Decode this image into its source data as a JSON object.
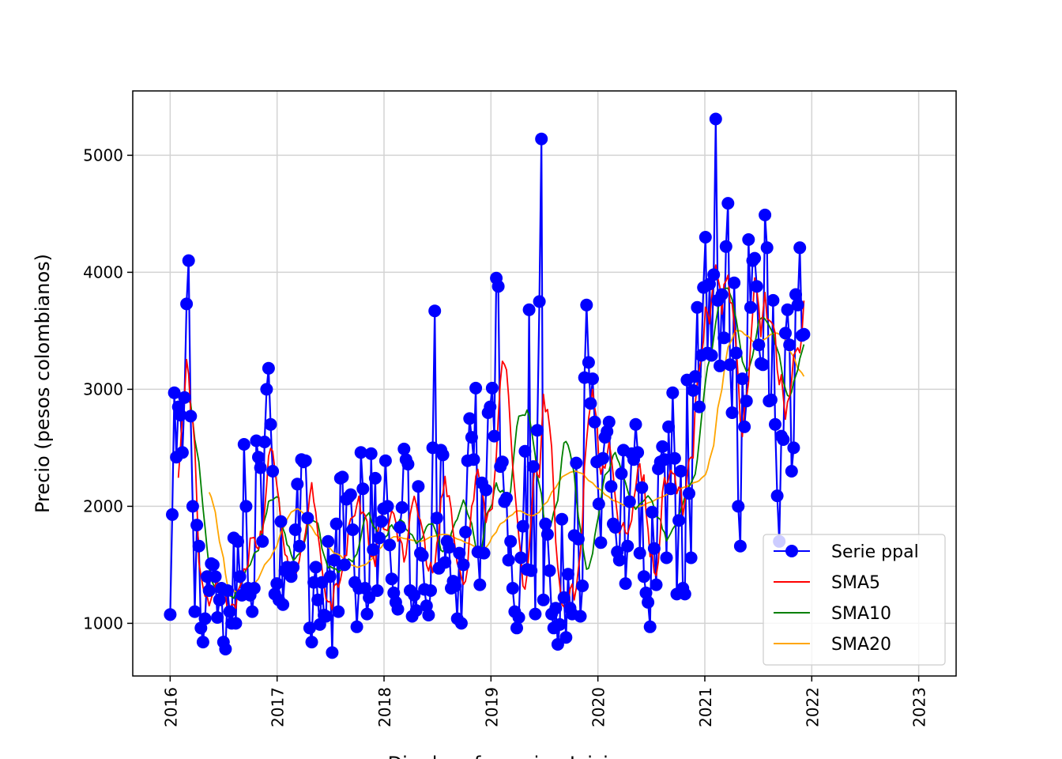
{
  "chart_data": {
    "type": "line",
    "title": "",
    "xlabel": "Dia de referencia - Inicio semana",
    "ylabel": "Precio (pesos colombianos)",
    "xlim": [
      2015.65,
      2023.35
    ],
    "ylim": [
      550,
      5550
    ],
    "x_ticks": [
      2016,
      2017,
      2018,
      2019,
      2020,
      2021,
      2022,
      2023
    ],
    "x_tick_labels": [
      "2016",
      "2017",
      "2018",
      "2019",
      "2020",
      "2021",
      "2022",
      "2023"
    ],
    "y_ticks": [
      1000,
      2000,
      3000,
      4000,
      5000
    ],
    "y_tick_labels": [
      "1000",
      "2000",
      "3000",
      "4000",
      "5000"
    ],
    "grid": true,
    "legend_position": "lower-right",
    "colors": {
      "serie": "#0000ff",
      "sma5": "#ff0000",
      "sma10": "#008000",
      "sma20": "#ffa500",
      "grid": "#d3d3d3"
    },
    "legend": [
      "Serie ppal",
      "SMA5",
      "SMA10",
      "SMA20"
    ],
    "series_main": {
      "name": "Serie ppal",
      "x_start": 2016.0,
      "x_step": 0.01918,
      "values": [
        1075,
        1930,
        2970,
        2420,
        2850,
        2780,
        2460,
        2930,
        3730,
        4100,
        2770,
        2000,
        1100,
        1840,
        1660,
        960,
        840,
        1040,
        1400,
        1280,
        1510,
        1500,
        1400,
        1050,
        1200,
        1300,
        840,
        780,
        1280,
        1100,
        1000,
        1730,
        1000,
        1700,
        1400,
        1240,
        2530,
        2000,
        1300,
        1240,
        1100,
        1300,
        2560,
        2420,
        2330,
        1700,
        2550,
        3000,
        3180,
        2700,
        2300,
        1250,
        1340,
        1200,
        1870,
        1160,
        1450,
        1480,
        1440,
        1400,
        1480,
        1800,
        2190,
        1660,
        2400,
        2380,
        2390,
        1900,
        960,
        840,
        1350,
        1480,
        1200,
        990,
        1350,
        1070,
        1060,
        1700,
        1400,
        750,
        1540,
        1850,
        1100,
        2240,
        2250,
        1500,
        2060,
        2080,
        2100,
        1800,
        1350,
        970,
        1300,
        2460,
        2150,
        1300,
        1080,
        1220,
        2450,
        1630,
        2240,
        1280,
        1730,
        1870,
        1980,
        2390,
        2000,
        1670,
        1380,
        1260,
        1180,
        1120,
        1820,
        1990,
        2490,
        2400,
        2360,
        1280,
        1060,
        1240,
        1110,
        2170,
        1600,
        1580,
        1290,
        1150,
        1070,
        1280,
        2500,
        3670,
        1900,
        1470,
        2480,
        2440,
        1520,
        1700,
        1650,
        1300,
        1360,
        1320,
        1040,
        1600,
        1000,
        1500,
        1780,
        2390,
        2750,
        2590,
        2400,
        3010,
        1610,
        1330,
        2200,
        1600,
        2140,
        2800,
        2850,
        3010,
        2600,
        3950,
        3880,
        2340,
        2380,
        2040,
        2070,
        1540,
        1700,
        1300,
        1100,
        960,
        1050,
        1560,
        1830,
        2470,
        1460,
        3680,
        1450,
        2340,
        1080,
        2650,
        3750,
        5140,
        1200,
        1850,
        1760,
        1450,
        1080,
        960,
        1130,
        820,
        990,
        1890,
        1220,
        880,
        1420,
        1130,
        1080,
        1750,
        2370,
        1720,
        1060,
        1320,
        3100,
        3720,
        3230,
        2880,
        3090,
        2720,
        2380,
        2020,
        1690,
        2410,
        2590,
        2640,
        2720,
        2170,
        1850,
        1820,
        1610,
        1540,
        2280,
        2480,
        1340,
        1660,
        2040,
        2450,
        2400,
        2700,
        2460,
        1600,
        2160,
        1400,
        1260,
        1180,
        970,
        1950,
        1640,
        1330,
        2320,
        2380,
        2510,
        2400,
        1560,
        2680,
        2150,
        2970,
        2410,
        1250,
        1880,
        2300,
        1300,
        1250,
        3080,
        2110,
        1560,
        2990,
        3110,
        3700,
        2850,
        3290,
        3870,
        4300,
        3310,
        3900,
        3290,
        3980,
        5310,
        3760,
        3200,
        3810,
        3440,
        4220,
        4590,
        3210,
        2800,
        3910,
        3310,
        2000,
        1660,
        3090,
        2680,
        2900,
        4280,
        3700,
        4100,
        4120,
        3880,
        3380,
        3220,
        3210,
        4490,
        4210,
        2900,
        2910,
        3760,
        2700,
        2090,
        1700,
        2600,
        2570,
        3480,
        3680,
        3380,
        2300,
        2500,
        3810,
        3720,
        4210,
        3460,
        3470
      ]
    },
    "sma5": [
      2244,
      2491,
      2796,
      2946,
      3254,
      3128,
      2812,
      2734,
      2516,
      2044,
      1520,
      1409,
      1311,
      1232,
      1234,
      1150,
      1210,
      1326,
      1364,
      1264,
      1246,
      1296,
      1234,
      1102,
      1066,
      1162,
      1160,
      1128,
      1278,
      1312,
      1358,
      1466,
      1458,
      1498,
      1728,
      1730,
      1734,
      1652,
      1634,
      1788,
      1770,
      1958,
      2172,
      2430,
      2496,
      2470,
      2326,
      2180,
      2060,
      1864,
      1588,
      1570,
      1432,
      1362,
      1386,
      1400,
      1462,
      1540,
      1660,
      1678,
      1778,
      1906,
      2082,
      2202,
      2040,
      1950,
      1770,
      1640,
      1470,
      1330,
      1208,
      1184,
      1185,
      1114,
      1320,
      1340,
      1308,
      1370,
      1462,
      1578,
      1580,
      1832,
      1894,
      1920,
      2010,
      2086,
      1936,
      1952,
      1924,
      1872,
      1630,
      1568,
      1578,
      1486,
      1744,
      1868,
      1922,
      1806,
      1800,
      1792,
      1880,
      1962,
      1938,
      1864,
      1702,
      1724,
      1682,
      1524,
      1588,
      1746,
      1928,
      2014,
      2086,
      2020,
      1916,
      1882,
      1718,
      1498,
      1448,
      1520,
      1432,
      1480,
      1684,
      1754,
      2066,
      2110,
      2256,
      2084,
      2090,
      1976,
      1780,
      1644,
      1508,
      1480,
      1394,
      1332,
      1360,
      1468,
      1774,
      2000,
      2054,
      2254,
      2316,
      2204,
      2144,
      2030,
      1862,
      1950,
      1980,
      2216,
      2428,
      2762,
      3066,
      3240,
      3212,
      3166,
      2946,
      2636,
      2346,
      2146,
      1944,
      1744,
      1572,
      1320,
      1292,
      1416,
      1628,
      1886,
      2188,
      2390,
      2270,
      2246,
      2594,
      2958,
      2808,
      2828,
      2682,
      2508,
      2138,
      1696,
      1482,
      1162,
      1140,
      1164,
      1142,
      1294,
      1336,
      1200,
      1300,
      1464,
      1604,
      1860,
      2340,
      2560,
      2750,
      2866,
      3000,
      2844,
      2744,
      2400,
      2274,
      2346,
      2326,
      2430,
      2550,
      2434,
      2272,
      2080,
      1932,
      1766,
      1820,
      1860,
      1774,
      1764,
      1882,
      2056,
      2156,
      2316,
      2364,
      2202,
      2268,
      1954,
      1804,
      1570,
      1612,
      1434,
      1408,
      1524,
      1770,
      2120,
      2246,
      2168,
      2234,
      2308,
      2280,
      2276,
      2108,
      2164,
      2148,
      1922,
      2034,
      2252,
      2398,
      2420,
      2412,
      2868,
      3054,
      3282,
      3412,
      3702,
      3652,
      3560,
      3778,
      3952,
      4062,
      3952,
      3874,
      3642,
      3896,
      3926,
      3976,
      3744,
      3734,
      3562,
      3364,
      3094,
      2730,
      2596,
      2838,
      2924,
      3058,
      3384,
      3646,
      3952,
      3850,
      3706,
      3450,
      3658,
      3828,
      3604,
      3576,
      3550,
      3480,
      3168,
      3040,
      3124,
      2924,
      2744,
      2890,
      2938,
      3070,
      3290,
      3324,
      3354,
      3312,
      3462,
      3758
    ],
    "sma10": [
      2902,
      2879,
      2735,
      2573,
      2380,
      2186,
      1988,
      1820,
      1638,
      1476,
      1370,
      1302,
      1318,
      1298,
      1254,
      1244,
      1252,
      1282,
      1240,
      1214,
      1262,
      1270,
      1318,
      1352,
      1406,
      1462,
      1500,
      1548,
      1600,
      1612,
      1622,
      1696,
      1822,
      1946,
      2042,
      2052,
      2054,
      2070,
      2082,
      2072,
      1854,
      1764,
      1672,
      1654,
      1588,
      1540,
      1554,
      1580,
      1614,
      1664,
      1732,
      1840,
      1910,
      1882,
      1874,
      1856,
      1768,
      1640,
      1584,
      1532,
      1472,
      1488,
      1474,
      1462,
      1434,
      1452,
      1478,
      1504,
      1538,
      1550,
      1526,
      1568,
      1592,
      1658,
      1736,
      1834,
      1904,
      1946,
      1880,
      1832,
      1814,
      1784,
      1762,
      1736,
      1722,
      1754,
      1822,
      1842,
      1808,
      1800,
      1850,
      1888,
      1862,
      1804,
      1788,
      1766,
      1756,
      1720,
      1682,
      1712,
      1730,
      1782,
      1826,
      1846,
      1848,
      1852,
      1808,
      1706,
      1624,
      1612,
      1640,
      1622,
      1650,
      1768,
      1864,
      1890,
      1946,
      2000,
      2054,
      2008,
      1938,
      1854,
      1752,
      1652,
      1600,
      1562,
      1648,
      1770,
      1924,
      1986,
      2018,
      2140,
      2200,
      2142,
      2120,
      2136,
      2086,
      2048,
      2132,
      2322,
      2510,
      2680,
      2770,
      2780,
      2778,
      2822,
      2772,
      2668,
      2550,
      2432,
      2258,
      2106,
      1934,
      1810,
      1784,
      1808,
      1866,
      1948,
      2050,
      2228,
      2412,
      2542,
      2554,
      2522,
      2456,
      2278,
      2072,
      1912,
      1808,
      1674,
      1564,
      1462,
      1470,
      1598,
      1744,
      1844,
      1928,
      2050,
      2180,
      2268,
      2304,
      2372,
      2436,
      2460,
      2406,
      2368,
      2304,
      2202,
      2138,
      2080,
      2042,
      2000,
      1974,
      1998,
      2020,
      2048,
      2072,
      2090,
      2068,
      2044,
      1986,
      1914,
      1888,
      1804,
      1778,
      1704,
      1736,
      1768,
      1806,
      1856,
      1924,
      1970,
      2020,
      2084,
      2134,
      2170,
      2200,
      2274,
      2396,
      2566,
      2746,
      2910,
      3066,
      3192,
      3310,
      3440,
      3570,
      3672,
      3760,
      3822,
      3862,
      3864,
      3814,
      3768,
      3678,
      3596,
      3484,
      3364,
      3238,
      3152,
      3168,
      3226,
      3288,
      3380,
      3480,
      3590,
      3618,
      3600,
      3574,
      3544,
      3510,
      3472,
      3392,
      3294,
      3188,
      3064,
      3002,
      2948,
      2938,
      2978,
      3064,
      3166,
      3262,
      3320,
      3384
    ],
    "sma20": [
      2120,
      2080,
      1950,
      1820,
      1700,
      1560,
      1420,
      1320,
      1290,
      1280,
      1270,
      1260,
      1255,
      1250,
      1260,
      1280,
      1300,
      1340,
      1380,
      1420,
      1460,
      1500,
      1540,
      1560,
      1600,
      1660,
      1720,
      1780,
      1840,
      1890,
      1920,
      1950,
      1970,
      1980,
      1970,
      1940,
      1900,
      1860,
      1820,
      1790,
      1760,
      1730,
      1700,
      1680,
      1660,
      1640,
      1620,
      1600,
      1590,
      1580,
      1560,
      1540,
      1520,
      1500,
      1490,
      1480,
      1480,
      1490,
      1500,
      1510,
      1530,
      1560,
      1590,
      1620,
      1650,
      1680,
      1700,
      1720,
      1730,
      1740,
      1740,
      1735,
      1730,
      1725,
      1720,
      1715,
      1710,
      1705,
      1700,
      1700,
      1710,
      1720,
      1730,
      1740,
      1745,
      1750,
      1755,
      1760,
      1760,
      1758,
      1750,
      1740,
      1730,
      1720,
      1710,
      1700,
      1690,
      1680,
      1670,
      1660,
      1650,
      1640,
      1640,
      1650,
      1670,
      1700,
      1740,
      1780,
      1820,
      1850,
      1870,
      1890,
      1910,
      1930,
      1950,
      1960,
      1960,
      1950,
      1940,
      1930,
      1920,
      1920,
      1930,
      1950,
      1980,
      2010,
      2040,
      2080,
      2120,
      2160,
      2190,
      2220,
      2250,
      2270,
      2280,
      2290,
      2300,
      2300,
      2290,
      2280,
      2260,
      2240,
      2220,
      2200,
      2180,
      2160,
      2140,
      2120,
      2100,
      2080,
      2060,
      2050,
      2040,
      2030,
      2020,
      2010,
      2000,
      1995,
      1990,
      1990,
      1995,
      2000,
      2010,
      2020,
      2030,
      2040,
      2050,
      2060,
      2070,
      2080,
      2090,
      2100,
      2110,
      2120,
      2130,
      2140,
      2150,
      2160,
      2170,
      2180,
      2190,
      2200,
      2210,
      2220,
      2240,
      2270,
      2320,
      2400,
      2520,
      2680,
      2840,
      3000,
      3140,
      3260,
      3360,
      3430,
      3480,
      3500,
      3500,
      3490,
      3470,
      3450,
      3430,
      3410,
      3400,
      3400,
      3410,
      3420,
      3440,
      3460,
      3470,
      3480,
      3480,
      3470,
      3450,
      3420,
      3380,
      3330,
      3280,
      3230,
      3180,
      3140,
      3110
    ]
  }
}
